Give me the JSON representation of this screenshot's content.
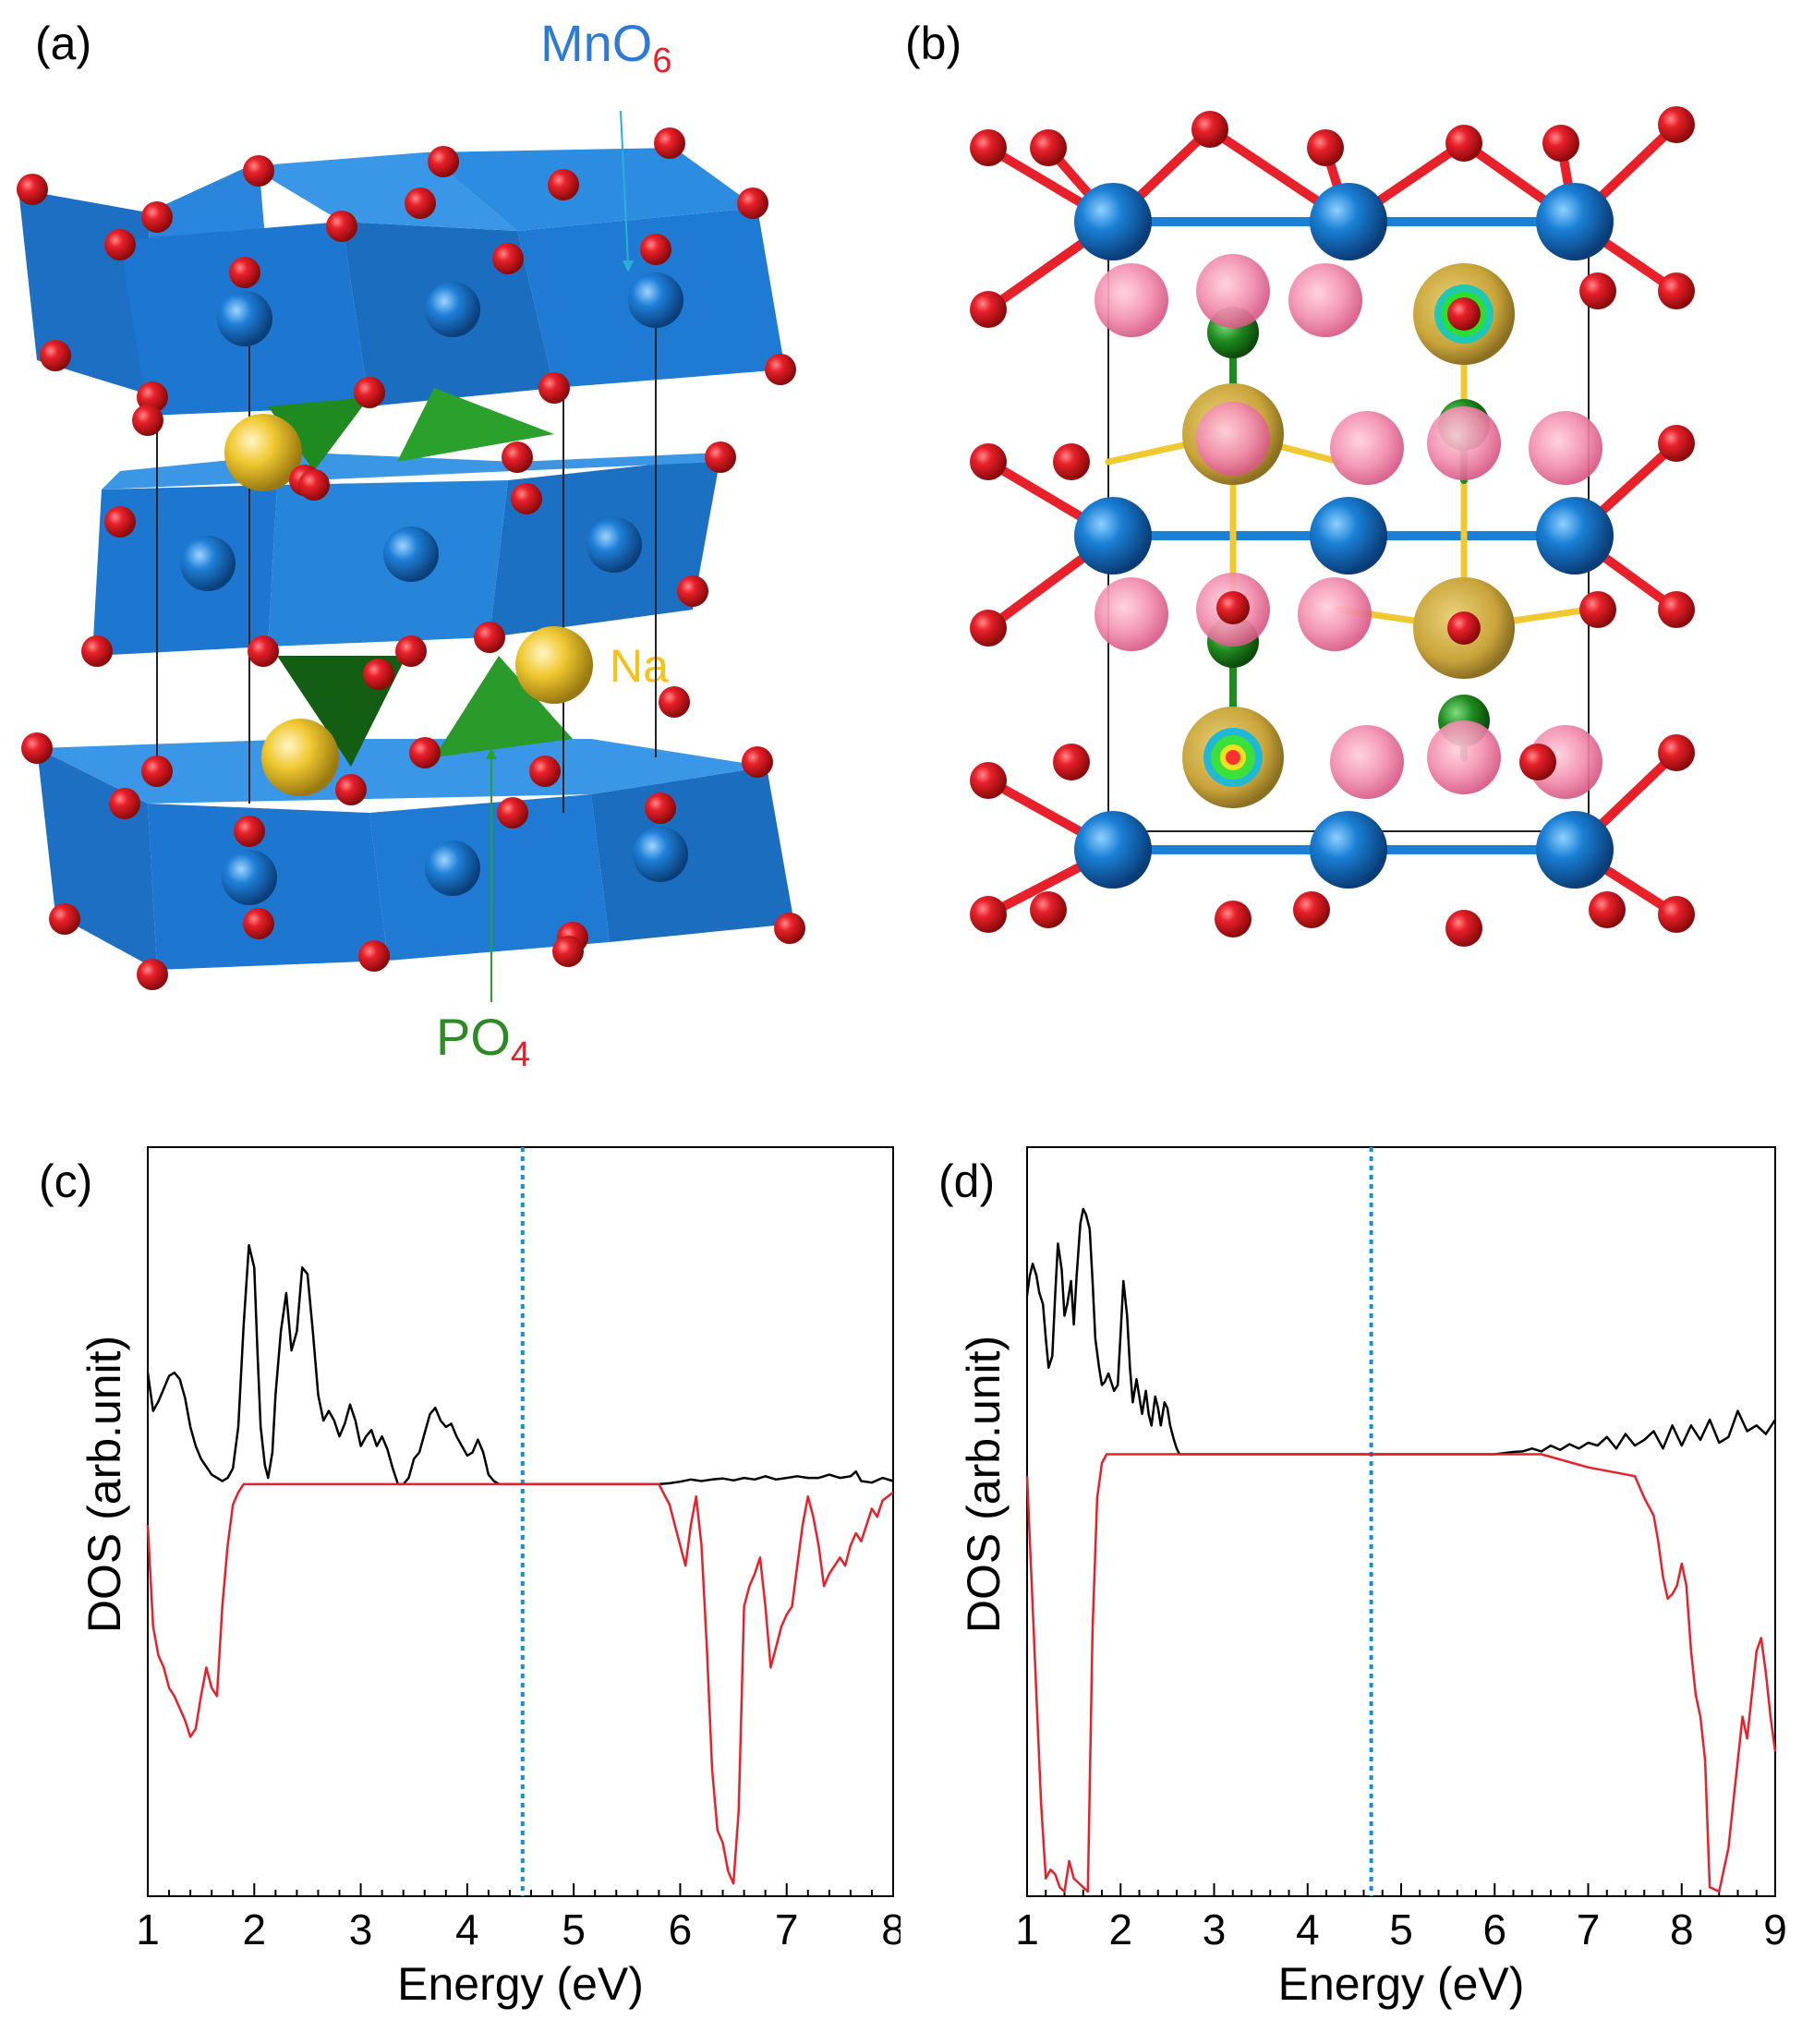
{
  "panels": {
    "a": {
      "label": "(a)",
      "mno6_main": "MnO",
      "mno6_sub": "6",
      "po4_main": "PO",
      "po4_sub": "4",
      "na": "Na"
    },
    "b": {
      "label": "(b)"
    },
    "c": {
      "label": "(c)"
    },
    "d": {
      "label": "(d)"
    }
  },
  "colors": {
    "mn": "#2e7bd6",
    "octahedron": "#1e78d0",
    "oxygen": "#e8202a",
    "phosphorus": "#1f7d1f",
    "sodium": "#f0c830",
    "spin_up": "#000000",
    "spin_down": "#e8202a",
    "fermi_level": "#1a8fc9"
  },
  "chart_data": [
    {
      "type": "line",
      "panel": "c",
      "xlabel": "Energy (eV)",
      "ylabel": "DOS (arb.unit)",
      "xlim": [
        1,
        8
      ],
      "ylim": [
        -1,
        1
      ],
      "xticks": [
        "1",
        "2",
        "3",
        "4",
        "5",
        "6",
        "7",
        "8"
      ],
      "fermi_level": 4.52,
      "series": [
        {
          "key": "up",
          "x": [
            1.0,
            1.05,
            1.1,
            1.15,
            1.2,
            1.25,
            1.3,
            1.35,
            1.4,
            1.45,
            1.5,
            1.6,
            1.7,
            1.75,
            1.8,
            1.85,
            1.9,
            1.95,
            2.0,
            2.03,
            2.06,
            2.1,
            2.13,
            2.17,
            2.2,
            2.25,
            2.3,
            2.35,
            2.4,
            2.45,
            2.5,
            2.55,
            2.6,
            2.65,
            2.7,
            2.75,
            2.8,
            2.85,
            2.9,
            2.95,
            3.0,
            3.05,
            3.1,
            3.15,
            3.2,
            3.25,
            3.3,
            3.35,
            3.4,
            3.45,
            3.5,
            3.55,
            3.6,
            3.65,
            3.7,
            3.75,
            3.8,
            3.85,
            3.9,
            3.95,
            4.0,
            4.05,
            4.1,
            4.15,
            4.2,
            4.25,
            4.3,
            4.4,
            5.0,
            5.8,
            5.9,
            6.0,
            6.1,
            6.2,
            6.3,
            6.4,
            6.5,
            6.6,
            6.7,
            6.8,
            6.9,
            7.0,
            7.1,
            7.2,
            7.3,
            7.4,
            7.5,
            7.6,
            7.65,
            7.7,
            7.8,
            7.9,
            8.0
          ],
          "y": [
            0.35,
            0.23,
            0.26,
            0.3,
            0.34,
            0.35,
            0.33,
            0.27,
            0.18,
            0.12,
            0.08,
            0.03,
            0.01,
            0.02,
            0.05,
            0.18,
            0.5,
            0.75,
            0.68,
            0.42,
            0.18,
            0.06,
            0.02,
            0.1,
            0.28,
            0.48,
            0.6,
            0.42,
            0.48,
            0.68,
            0.66,
            0.48,
            0.28,
            0.2,
            0.23,
            0.2,
            0.15,
            0.19,
            0.25,
            0.2,
            0.12,
            0.15,
            0.17,
            0.12,
            0.15,
            0.11,
            0.05,
            0.0,
            0.0,
            0.02,
            0.08,
            0.1,
            0.16,
            0.22,
            0.24,
            0.2,
            0.18,
            0.19,
            0.15,
            0.12,
            0.09,
            0.1,
            0.14,
            0.1,
            0.03,
            0.01,
            0.0,
            0.0,
            0.0,
            0.0,
            0.003,
            0.008,
            0.015,
            0.01,
            0.015,
            0.018,
            0.012,
            0.02,
            0.015,
            0.025,
            0.015,
            0.02,
            0.025,
            0.02,
            0.02,
            0.03,
            0.02,
            0.025,
            0.04,
            0.01,
            0.005,
            0.02,
            0.01
          ]
        },
        {
          "key": "down",
          "x": [
            1.0,
            1.05,
            1.1,
            1.15,
            1.2,
            1.25,
            1.3,
            1.35,
            1.4,
            1.45,
            1.5,
            1.55,
            1.6,
            1.65,
            1.7,
            1.75,
            1.8,
            1.85,
            1.9,
            2.0,
            5.8,
            5.9,
            6.0,
            6.05,
            6.1,
            6.15,
            6.2,
            6.25,
            6.3,
            6.35,
            6.4,
            6.45,
            6.5,
            6.55,
            6.6,
            6.65,
            6.7,
            6.75,
            6.8,
            6.85,
            6.9,
            6.95,
            7.0,
            7.05,
            7.1,
            7.15,
            7.2,
            7.25,
            7.3,
            7.35,
            7.4,
            7.45,
            7.5,
            7.55,
            7.6,
            7.65,
            7.7,
            7.75,
            7.8,
            7.85,
            7.9,
            7.95,
            8.0
          ],
          "y": [
            -0.1,
            -0.35,
            -0.42,
            -0.45,
            -0.5,
            -0.52,
            -0.55,
            -0.58,
            -0.62,
            -0.6,
            -0.52,
            -0.45,
            -0.5,
            -0.52,
            -0.3,
            -0.15,
            -0.05,
            -0.02,
            0.0,
            0.0,
            0.0,
            -0.05,
            -0.15,
            -0.2,
            -0.1,
            -0.03,
            -0.15,
            -0.4,
            -0.7,
            -0.85,
            -0.88,
            -0.95,
            -0.98,
            -0.8,
            -0.3,
            -0.25,
            -0.22,
            -0.18,
            -0.3,
            -0.45,
            -0.4,
            -0.35,
            -0.32,
            -0.3,
            -0.2,
            -0.1,
            -0.03,
            -0.08,
            -0.15,
            -0.25,
            -0.22,
            -0.2,
            -0.18,
            -0.2,
            -0.15,
            -0.12,
            -0.14,
            -0.1,
            -0.06,
            -0.08,
            -0.04,
            -0.03,
            -0.02
          ]
        }
      ]
    },
    {
      "type": "line",
      "panel": "d",
      "xlabel": "Energy (eV)",
      "ylabel": "DOS (arb.unit)",
      "xlim": [
        1,
        9
      ],
      "ylim": [
        -1,
        1
      ],
      "xticks": [
        "1",
        "2",
        "3",
        "4",
        "5",
        "6",
        "7",
        "8",
        "9"
      ],
      "fermi_level": 4.68,
      "series": [
        {
          "key": "up",
          "x": [
            1.0,
            1.03,
            1.06,
            1.1,
            1.13,
            1.17,
            1.2,
            1.23,
            1.27,
            1.3,
            1.33,
            1.37,
            1.4,
            1.43,
            1.47,
            1.5,
            1.53,
            1.57,
            1.6,
            1.63,
            1.67,
            1.7,
            1.73,
            1.77,
            1.8,
            1.83,
            1.87,
            1.9,
            1.93,
            1.97,
            2.0,
            2.03,
            2.07,
            2.1,
            2.13,
            2.17,
            2.2,
            2.23,
            2.27,
            2.3,
            2.33,
            2.37,
            2.4,
            2.43,
            2.47,
            2.5,
            2.53,
            2.57,
            2.6,
            2.63,
            2.67,
            2.7,
            2.73,
            2.77,
            2.8,
            2.83,
            2.87,
            2.9,
            2.93,
            2.97,
            3.0,
            3.1,
            6.0,
            6.2,
            6.3,
            6.4,
            6.5,
            6.6,
            6.7,
            6.8,
            6.9,
            7.0,
            7.1,
            7.2,
            7.3,
            7.4,
            7.5,
            7.6,
            7.7,
            7.8,
            7.9,
            8.0,
            8.1,
            8.2,
            8.3,
            8.4,
            8.5,
            8.6,
            8.7,
            8.8,
            8.9,
            9.0
          ],
          "y": [
            0.55,
            0.62,
            0.66,
            0.62,
            0.56,
            0.52,
            0.4,
            0.3,
            0.34,
            0.55,
            0.73,
            0.64,
            0.48,
            0.52,
            0.6,
            0.45,
            0.62,
            0.8,
            0.85,
            0.83,
            0.78,
            0.6,
            0.4,
            0.3,
            0.24,
            0.25,
            0.28,
            0.25,
            0.22,
            0.24,
            0.42,
            0.6,
            0.48,
            0.3,
            0.18,
            0.26,
            0.2,
            0.14,
            0.22,
            0.14,
            0.1,
            0.2,
            0.16,
            0.1,
            0.18,
            0.16,
            0.1,
            0.05,
            0.02,
            0.0,
            0.0,
            0.0,
            0.0,
            0.0,
            0.0,
            0.0,
            0.0,
            0.0,
            0.0,
            0.0,
            0.0,
            0.0,
            0.0,
            0.008,
            0.01,
            0.02,
            0.01,
            0.03,
            0.015,
            0.035,
            0.02,
            0.04,
            0.03,
            0.06,
            0.02,
            0.07,
            0.03,
            0.05,
            0.08,
            0.02,
            0.1,
            0.03,
            0.1,
            0.05,
            0.12,
            0.04,
            0.06,
            0.15,
            0.08,
            0.1,
            0.07,
            0.12
          ]
        },
        {
          "key": "down",
          "x": [
            1.0,
            1.05,
            1.1,
            1.15,
            1.2,
            1.25,
            1.3,
            1.35,
            1.4,
            1.45,
            1.5,
            1.55,
            1.6,
            1.65,
            1.7,
            1.75,
            1.8,
            1.85,
            1.9,
            2.0,
            6.5,
            7.0,
            7.5,
            7.6,
            7.7,
            7.75,
            7.8,
            7.85,
            7.9,
            7.95,
            8.0,
            8.05,
            8.1,
            8.15,
            8.2,
            8.25,
            8.3,
            8.4,
            8.5,
            8.55,
            8.6,
            8.65,
            8.7,
            8.75,
            8.8,
            8.85,
            8.9,
            8.95,
            9.0
          ],
          "y": [
            -0.05,
            -0.3,
            -0.55,
            -0.8,
            -0.97,
            -0.95,
            -0.96,
            -0.99,
            -1.0,
            -0.93,
            -0.97,
            -0.98,
            -0.99,
            -1.0,
            -0.4,
            -0.1,
            -0.02,
            0.0,
            0.0,
            0.0,
            0.0,
            -0.03,
            -0.05,
            -0.1,
            -0.14,
            -0.2,
            -0.28,
            -0.33,
            -0.32,
            -0.3,
            -0.25,
            -0.3,
            -0.45,
            -0.55,
            -0.6,
            -0.7,
            -0.99,
            -1.0,
            -0.9,
            -0.8,
            -0.7,
            -0.6,
            -0.65,
            -0.55,
            -0.45,
            -0.42,
            -0.5,
            -0.6,
            -0.68
          ]
        }
      ]
    }
  ]
}
